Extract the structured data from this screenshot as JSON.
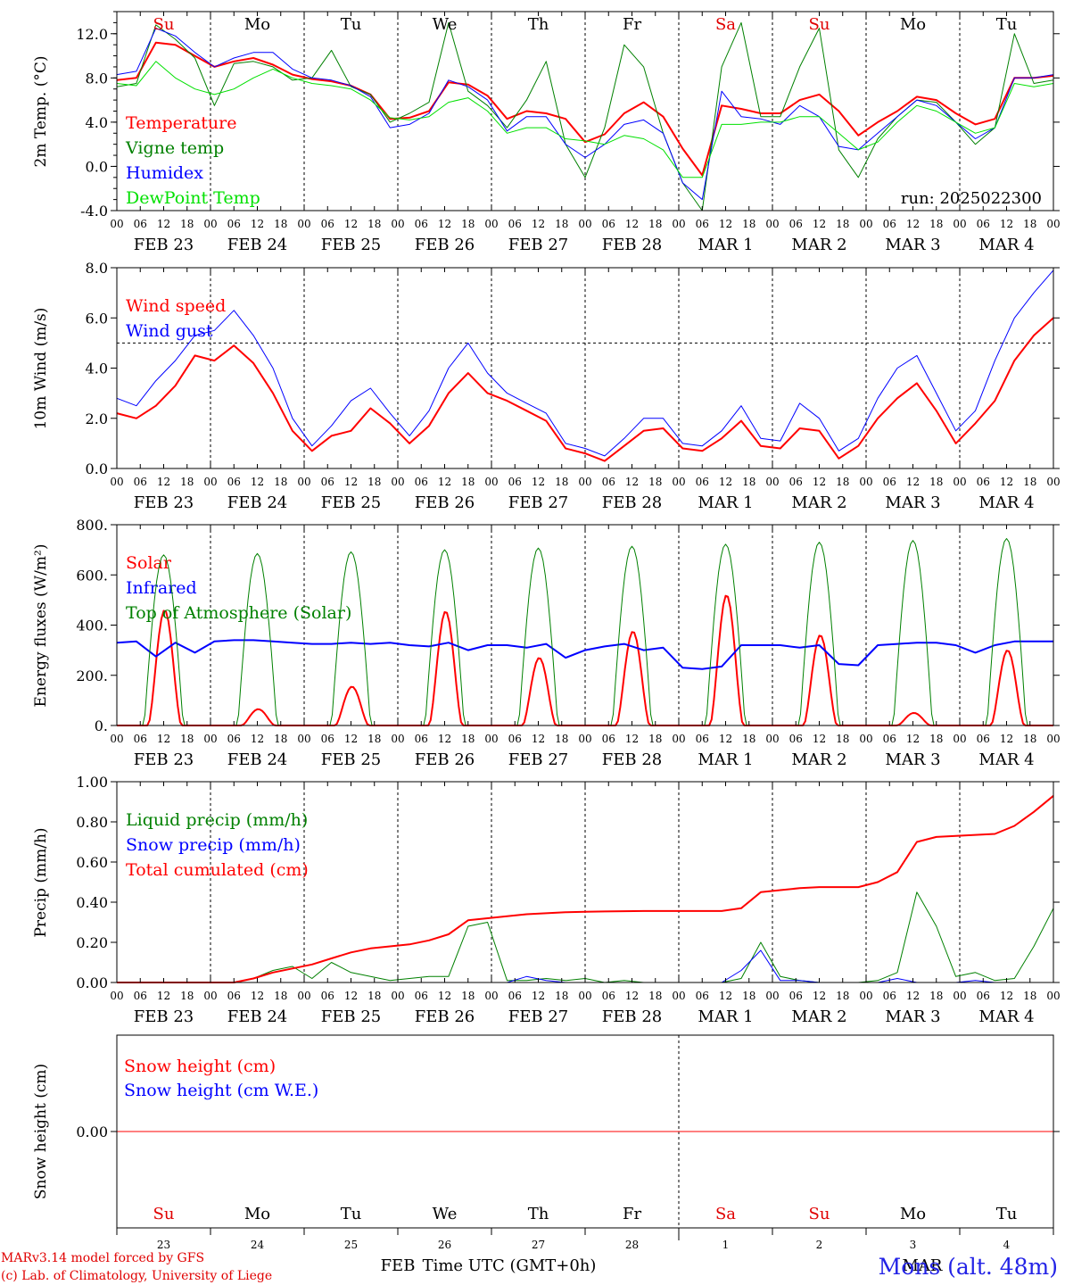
{
  "run_label": "run: 2025022300",
  "hour_labels": [
    "00",
    "06",
    "12",
    "18"
  ],
  "date_labels": [
    "FEB 23",
    "FEB 24",
    "FEB 25",
    "FEB 26",
    "FEB 27",
    "FEB 28",
    "MAR  1",
    "MAR  2",
    "MAR  3",
    "MAR  4"
  ],
  "day_names": [
    {
      "t": "Su",
      "c": "#e00000"
    },
    {
      "t": "Mo",
      "c": "#000000"
    },
    {
      "t": "Tu",
      "c": "#000000"
    },
    {
      "t": "We",
      "c": "#000000"
    },
    {
      "t": "Th",
      "c": "#000000"
    },
    {
      "t": "Fr",
      "c": "#000000"
    },
    {
      "t": "Sa",
      "c": "#e00000"
    },
    {
      "t": "Su",
      "c": "#e00000"
    },
    {
      "t": "Mo",
      "c": "#000000"
    },
    {
      "t": "Tu",
      "c": "#000000"
    }
  ],
  "bottom_day_numbers": [
    "23",
    "24",
    "25",
    "26",
    "27",
    "28",
    "1",
    "2",
    "3",
    "4"
  ],
  "bottom_month_labels": [
    "FEB",
    "MAR"
  ],
  "footer": {
    "left_line1": "MARv3.14 model forced by GFS",
    "left_line2": "(c) Lab. of Climatology, University of Liege",
    "center": "Time UTC (GMT+0h)",
    "right": "Mons (alt. 48m)"
  },
  "chart_data": [
    {
      "type": "line",
      "ylabel": "2m Temp. (°C)",
      "ylim": [
        -4,
        14
      ],
      "yticks": [
        "-4.0",
        "0.0",
        "4.0",
        "8.0",
        "12.0"
      ],
      "ytick_values": [
        -4,
        0,
        4,
        8,
        12
      ],
      "x_unit": "days since FEB 23 00 UTC, 6-hourly",
      "series": [
        {
          "name": "Temperature",
          "color": "#ff0000",
          "width": 2,
          "values": [
            7.8,
            8.0,
            11.2,
            11.0,
            10.0,
            9.0,
            9.5,
            9.8,
            9.2,
            8.3,
            7.9,
            7.7,
            7.3,
            6.5,
            4.3,
            4.4,
            5.0,
            7.6,
            7.4,
            6.4,
            4.3,
            5.0,
            4.8,
            4.3,
            2.2,
            2.9,
            4.8,
            5.8,
            4.5,
            1.6,
            -0.8,
            5.5,
            5.2,
            4.8,
            4.8,
            6.0,
            6.5,
            5.0,
            2.8,
            4.0,
            5.0,
            6.3,
            6.0,
            4.8,
            3.8,
            4.3,
            8.0,
            8.0,
            8.2
          ]
        },
        {
          "name": "Vigne temp",
          "color": "#008000",
          "width": 1,
          "values": [
            7.2,
            7.5,
            12.8,
            11.5,
            9.8,
            5.5,
            9.3,
            9.5,
            9.0,
            7.8,
            8.0,
            10.5,
            7.2,
            6.5,
            4.0,
            4.8,
            5.8,
            13.0,
            6.8,
            5.5,
            3.5,
            6.0,
            9.5,
            2.0,
            -1.0,
            3.5,
            11.0,
            9.0,
            3.0,
            -1.5,
            -4.0,
            9.0,
            13.0,
            4.5,
            4.5,
            9.0,
            12.5,
            1.5,
            -1.0,
            2.5,
            4.5,
            6.0,
            5.8,
            4.0,
            2.0,
            3.5,
            12.0,
            7.5,
            7.8
          ]
        },
        {
          "name": "Humidex",
          "color": "#0000ff",
          "width": 1,
          "values": [
            8.3,
            8.6,
            12.5,
            11.8,
            10.3,
            9.0,
            9.8,
            10.3,
            10.3,
            8.8,
            8.0,
            7.8,
            7.3,
            6.3,
            3.5,
            3.8,
            4.8,
            7.8,
            7.2,
            6.0,
            3.2,
            4.5,
            4.5,
            2.0,
            0.8,
            2.0,
            3.8,
            4.2,
            3.0,
            -1.5,
            -3.0,
            6.8,
            4.5,
            4.3,
            3.8,
            5.5,
            4.5,
            1.8,
            1.5,
            3.0,
            4.5,
            6.0,
            5.5,
            4.0,
            2.5,
            3.5,
            8.0,
            8.0,
            8.3
          ]
        },
        {
          "name": "DewPoint Temp",
          "color": "#00e000",
          "width": 1,
          "values": [
            7.5,
            7.3,
            9.5,
            8.0,
            7.0,
            6.5,
            7.0,
            8.0,
            8.8,
            8.0,
            7.5,
            7.3,
            7.0,
            6.0,
            4.4,
            4.2,
            4.5,
            5.8,
            6.2,
            5.0,
            3.0,
            3.5,
            3.5,
            2.5,
            2.3,
            2.0,
            2.8,
            2.5,
            1.5,
            -1.0,
            -1.0,
            3.8,
            3.8,
            4.0,
            4.0,
            4.5,
            4.5,
            3.0,
            1.5,
            2.2,
            4.0,
            5.5,
            5.0,
            4.0,
            3.0,
            3.5,
            7.5,
            7.2,
            7.5
          ]
        }
      ],
      "hline": null
    },
    {
      "type": "line",
      "ylabel": "10m Wind (m/s)",
      "ylim": [
        0,
        8
      ],
      "yticks": [
        "0.0",
        "2.0",
        "4.0",
        "6.0",
        "8.0"
      ],
      "ytick_values": [
        0,
        2,
        4,
        6,
        8
      ],
      "series": [
        {
          "name": "Wind speed",
          "color": "#ff0000",
          "width": 2,
          "values": [
            2.2,
            2.0,
            2.5,
            3.3,
            4.5,
            4.3,
            4.9,
            4.2,
            3.0,
            1.5,
            0.7,
            1.3,
            1.5,
            2.4,
            1.8,
            1.0,
            1.7,
            3.0,
            3.8,
            3.0,
            2.7,
            2.3,
            1.9,
            0.8,
            0.6,
            0.3,
            0.9,
            1.5,
            1.6,
            0.8,
            0.7,
            1.2,
            1.9,
            0.9,
            0.8,
            1.6,
            1.5,
            0.4,
            0.9,
            2.0,
            2.8,
            3.4,
            2.3,
            1.0,
            1.8,
            2.7,
            4.3,
            5.3,
            6.0
          ]
        },
        {
          "name": "Wind gust",
          "color": "#0000ff",
          "width": 1,
          "values": [
            2.8,
            2.5,
            3.5,
            4.3,
            5.3,
            5.5,
            6.3,
            5.3,
            4.0,
            2.0,
            0.9,
            1.7,
            2.7,
            3.2,
            2.2,
            1.3,
            2.3,
            4.0,
            5.0,
            3.8,
            3.0,
            2.6,
            2.2,
            1.0,
            0.8,
            0.5,
            1.2,
            2.0,
            2.0,
            1.0,
            0.9,
            1.5,
            2.5,
            1.2,
            1.1,
            2.6,
            2.0,
            0.7,
            1.2,
            2.8,
            4.0,
            4.5,
            3.0,
            1.5,
            2.3,
            4.3,
            6.0,
            7.0,
            7.9
          ]
        }
      ],
      "hline": 5
    },
    {
      "type": "line",
      "ylabel": "Energy fluxes (W/m²)",
      "ylim": [
        0,
        800
      ],
      "yticks": [
        "0.",
        "200.",
        "400.",
        "600.",
        "800."
      ],
      "ytick_values": [
        0,
        200,
        400,
        600,
        800
      ],
      "series": [
        {
          "name": "Solar",
          "color": "#ff0000",
          "width": 2,
          "profile": "solar",
          "peaks": [
            460,
            65,
            155,
            455,
            270,
            375,
            520,
            360,
            50,
            300
          ]
        },
        {
          "name": "Infrared",
          "color": "#0000ff",
          "width": 2,
          "values": [
            330,
            335,
            275,
            330,
            290,
            335,
            340,
            340,
            335,
            330,
            325,
            325,
            330,
            325,
            330,
            320,
            315,
            330,
            300,
            320,
            320,
            310,
            325,
            270,
            300,
            315,
            325,
            300,
            310,
            230,
            225,
            235,
            320,
            320,
            320,
            310,
            320,
            245,
            240,
            320,
            325,
            330,
            330,
            320,
            290,
            320,
            335,
            335,
            335
          ]
        },
        {
          "name": "Top of Atmosphere (Solar)",
          "color": "#008000",
          "width": 1,
          "profile": "toa",
          "peaks": [
            680,
            685,
            692,
            700,
            707,
            714,
            722,
            730,
            737,
            745
          ]
        }
      ],
      "hline": null
    },
    {
      "type": "line",
      "ylabel": "Precip (mm/h)",
      "ylim": [
        0,
        1
      ],
      "yticks": [
        "0.00",
        "0.20",
        "0.40",
        "0.60",
        "0.80",
        "1.00"
      ],
      "ytick_values": [
        0,
        0.2,
        0.4,
        0.6,
        0.8,
        1.0
      ],
      "series": [
        {
          "name": "Liquid precip (mm/h)",
          "color": "#008000",
          "width": 1,
          "values": [
            0,
            0,
            0,
            0,
            0,
            0,
            0,
            0.02,
            0.06,
            0.08,
            0.02,
            0.1,
            0.05,
            0.03,
            0.01,
            0.02,
            0.03,
            0.03,
            0.28,
            0.3,
            0.01,
            0.01,
            0.02,
            0.01,
            0.02,
            0,
            0.01,
            0,
            0,
            0,
            0,
            0,
            0.02,
            0.2,
            0.03,
            0.01,
            0,
            0,
            0,
            0.01,
            0.05,
            0.45,
            0.28,
            0.03,
            0.05,
            0.01,
            0.02,
            0.18,
            0.37
          ]
        },
        {
          "name": "Snow precip (mm/h)",
          "color": "#0000ff",
          "width": 1,
          "values": [
            0,
            0,
            0,
            0,
            0,
            0,
            0,
            0,
            0,
            0,
            0,
            0,
            0,
            0,
            0,
            0,
            0,
            0,
            0,
            0,
            0,
            0.03,
            0.01,
            0,
            0,
            0,
            0,
            0,
            0,
            0,
            0,
            0,
            0.06,
            0.16,
            0.01,
            0.01,
            0,
            0,
            0,
            0,
            0.02,
            0,
            0,
            0,
            0.01,
            0,
            0,
            0,
            0
          ]
        },
        {
          "name": "Total cumulated (cm)",
          "color": "#ff0000",
          "width": 2,
          "values": [
            0,
            0,
            0,
            0,
            0,
            0,
            0,
            0.02,
            0.05,
            0.07,
            0.09,
            0.12,
            0.15,
            0.17,
            0.18,
            0.19,
            0.21,
            0.24,
            0.31,
            0.32,
            0.33,
            0.34,
            0.345,
            0.35,
            0.352,
            0.354,
            0.355,
            0.356,
            0.356,
            0.356,
            0.356,
            0.356,
            0.37,
            0.45,
            0.46,
            0.47,
            0.475,
            0.475,
            0.475,
            0.5,
            0.55,
            0.7,
            0.725,
            0.73,
            0.735,
            0.74,
            0.78,
            0.85,
            0.93
          ]
        }
      ],
      "hline": null
    },
    {
      "type": "line",
      "ylabel": "Snow height (cm)",
      "ylim": [
        -1,
        1
      ],
      "yticks": [
        "0.00"
      ],
      "ytick_values": [
        0
      ],
      "series": [
        {
          "name": "Snow height (cm)",
          "color": "#ff0000",
          "width": 1,
          "values": [
            0,
            0
          ]
        },
        {
          "name": "Snow height (cm W.E.)",
          "color": "#0000ff",
          "width": 1,
          "values": null
        }
      ],
      "hline": null
    }
  ]
}
